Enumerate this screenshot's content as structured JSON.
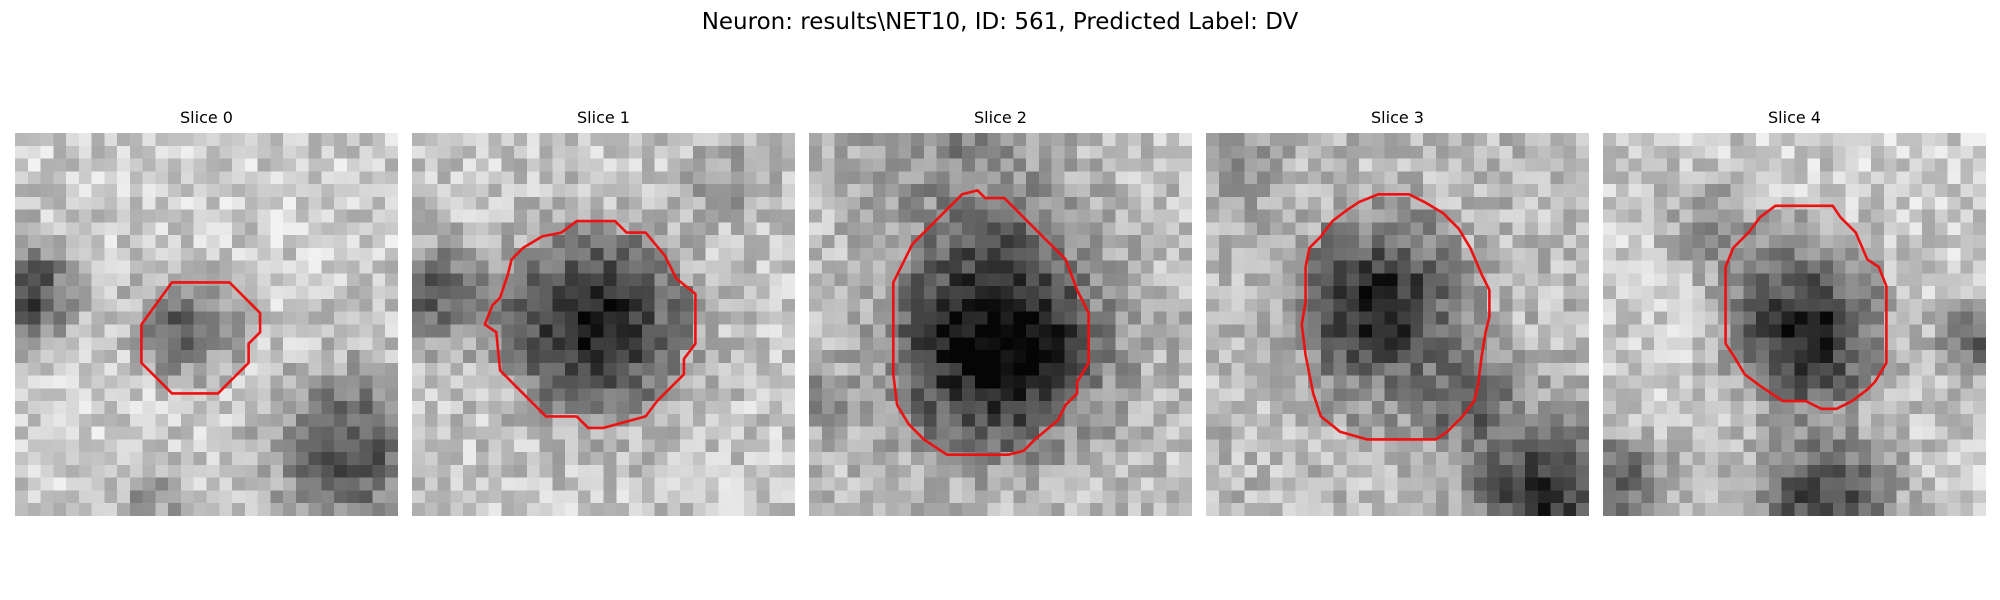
{
  "figure": {
    "title": "Neuron: results\\NET10, ID: 561, Predicted Label: DV",
    "contour_color": "#ee1111"
  },
  "panels": [
    {
      "title": "Slice 0",
      "image": "grayscale microscopy slice with a small dark cell body outlined at the centre-left"
    },
    {
      "title": "Slice 1",
      "image": "grayscale microscopy slice with a dark round cell body outlined at the centre"
    },
    {
      "title": "Slice 2",
      "image": "grayscale microscopy slice with a large dark cell body outlined at the centre"
    },
    {
      "title": "Slice 3",
      "image": "grayscale microscopy slice with a mottled cell body outlined at the centre"
    },
    {
      "title": "Slice 4",
      "image": "grayscale microscopy slice with a dark cell body outlined in the upper centre"
    }
  ]
}
